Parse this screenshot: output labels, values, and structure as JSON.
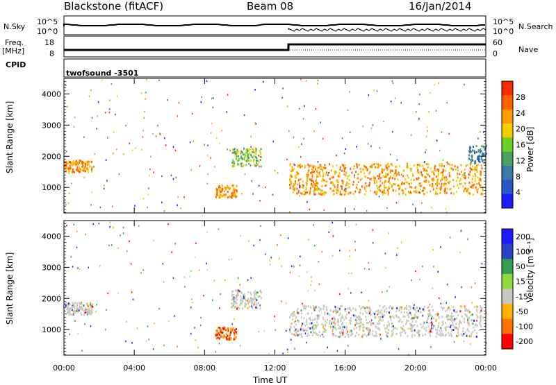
{
  "header": {
    "station": "Blackstone (fitACF)",
    "beam": "Beam 08",
    "date": "16/Jan/2014"
  },
  "side_labels": {
    "nsky": "N.Sky",
    "freq": "Freq.",
    "freq_unit": "[MHz]",
    "cpid": "CPID",
    "nsearch": "N.Search",
    "nave": "Nave",
    "nsky_top": "10^5",
    "nsky_bottom": "10^0",
    "nsearch_top": "10^5",
    "nsearch_bottom": "10^0",
    "freq_top": "18",
    "freq_bottom": "8",
    "nave_top": "60",
    "nave_bottom": "0"
  },
  "cpid_text": "twofsound -3501",
  "colors": {
    "power": [
      "#1a1aff",
      "#2855c8",
      "#3a78a8",
      "#4aa060",
      "#6ccf2c",
      "#f0d000",
      "#ff9a00",
      "#ff6000",
      "#ff2800"
    ],
    "velocity": [
      "#ff0000",
      "#ff7000",
      "#ffb000",
      "#c8c8c0",
      "#90d840",
      "#30a050",
      "#2a40c8",
      "#1a1aff"
    ]
  },
  "chart_data": [
    {
      "type": "heatmap",
      "quantity": "Power",
      "ylabel": "Slant Range [km]",
      "xlabel": "",
      "x_ticks": [
        "00:00",
        "04:00",
        "08:00",
        "12:00",
        "16:00",
        "20:00",
        "00:00"
      ],
      "y_ticks": [
        1000,
        2000,
        3000,
        4000
      ],
      "ylim": [
        180,
        4500
      ],
      "xlim_hours": [
        0,
        24
      ],
      "colorbar": {
        "label": "Power [dB]",
        "ticks": [
          4,
          8,
          12,
          16,
          20,
          24,
          28
        ]
      },
      "regions": [
        {
          "name": "main echo band",
          "x_hours": [
            12.8,
            23.8
          ],
          "y_km": [
            800,
            1800
          ],
          "level": "strong"
        },
        {
          "name": "early echo",
          "x_hours": [
            0.0,
            1.6
          ],
          "y_km": [
            1500,
            1900
          ],
          "level": "strong"
        },
        {
          "name": "mid-day patch",
          "x_hours": [
            9.5,
            11.2
          ],
          "y_km": [
            1700,
            2300
          ],
          "level": "medium"
        },
        {
          "name": "morning patch",
          "x_hours": [
            8.6,
            9.8
          ],
          "y_km": [
            700,
            1100
          ],
          "level": "strong"
        },
        {
          "name": "late-night rise",
          "x_hours": [
            23.0,
            24.0
          ],
          "y_km": [
            1800,
            2400
          ],
          "level": "weak"
        }
      ]
    },
    {
      "type": "heatmap",
      "quantity": "Velocity",
      "ylabel": "Slant Range [km]",
      "xlabel": "Time UT",
      "x_ticks": [
        "00:00",
        "04:00",
        "08:00",
        "12:00",
        "16:00",
        "20:00",
        "00:00"
      ],
      "y_ticks": [
        1000,
        2000,
        3000,
        4000
      ],
      "ylim": [
        180,
        4500
      ],
      "xlim_hours": [
        0,
        24
      ],
      "colorbar": {
        "label": "Velocity [m s⁻¹]",
        "ticks": [
          200,
          100,
          50,
          15,
          -15,
          -50,
          -100,
          -200
        ]
      },
      "regions": [
        {
          "name": "main echo band",
          "x_hours": [
            12.8,
            23.8
          ],
          "y_km": [
            800,
            1800
          ],
          "level": "near-zero"
        },
        {
          "name": "early echo",
          "x_hours": [
            0.0,
            1.6
          ],
          "y_km": [
            1500,
            1900
          ],
          "level": "near-zero"
        },
        {
          "name": "mid-day patch",
          "x_hours": [
            9.5,
            11.2
          ],
          "y_km": [
            1700,
            2300
          ],
          "level": "near-zero"
        },
        {
          "name": "morning patch",
          "x_hours": [
            8.6,
            9.8
          ],
          "y_km": [
            700,
            1100
          ],
          "level": "negative"
        }
      ]
    }
  ]
}
